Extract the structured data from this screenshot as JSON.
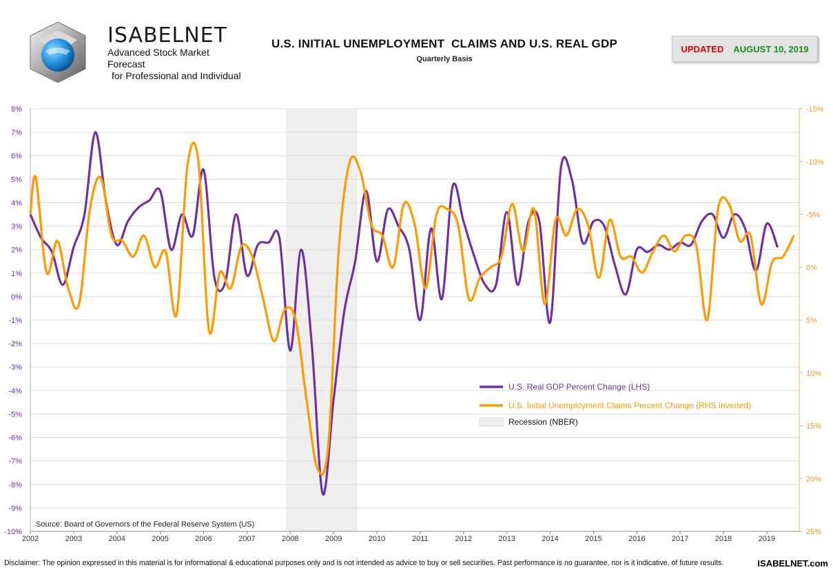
{
  "brand": {
    "name": "ISABELNET",
    "line1": "Advanced Stock Market Forecast",
    "line2": "for Professional and Individual"
  },
  "header": {
    "title": "U.S. INITIAL UNEMPLOYMENT  CLAIMS AND U.S. REAL GDP",
    "subtitle": "Quarterly Basis",
    "updated_label": "UPDATED",
    "updated_date": "AUGUST 10, 2019"
  },
  "colors": {
    "gdp": "#7030a0",
    "claims": "#ff9900",
    "recession": "#efefef",
    "left_axis_text": "#7030a0",
    "right_axis_text": "#e09a2a"
  },
  "footer": {
    "source": "Source: Board of Governors of the Federal Reserve System (US)",
    "disclaimer": "Disclaimer: The opinion expressed in this material is for informational & educational purposes only and is not intended as advice to buy or sell securities. Past performance is no guarantee, nor is it indicative, of future results.",
    "site": "ISABELNET.com"
  },
  "chart_data": {
    "type": "line",
    "title": "U.S. INITIAL UNEMPLOYMENT  CLAIMS AND U.S. REAL GDP",
    "subtitle": "Quarterly Basis",
    "x_tick_labels": [
      "2002",
      "2003",
      "2004",
      "2005",
      "2006",
      "2007",
      "2008",
      "2009",
      "2010",
      "2011",
      "2012",
      "2013",
      "2014",
      "2015",
      "2016",
      "2017",
      "2018",
      "2019"
    ],
    "x_range": [
      2002.0,
      2019.75
    ],
    "y_left": {
      "range": [
        -10,
        8
      ],
      "tick_labels": [
        "8%",
        "7%",
        "6%",
        "5%",
        "4%",
        "3%",
        "2%",
        "1%",
        "0%",
        "-1%",
        "-2%",
        "-3%",
        "-4%",
        "-5%",
        "-6%",
        "-7%",
        "-8%",
        "-9%",
        "-10%"
      ]
    },
    "y_right": {
      "inverted": true,
      "range": [
        -15,
        25
      ],
      "tick_labels": [
        "-15%",
        "-10%",
        "-5%",
        "0%",
        "5%",
        "10%",
        "15%",
        "20%",
        "25%"
      ]
    },
    "grid": "horizontal",
    "legend": "center-right",
    "recession": {
      "start": 2007.9,
      "end": 2009.55,
      "label": "Recession (NBER)"
    },
    "series": [
      {
        "name": "U.S. Real GDP Percent Change (LHS)",
        "axis": "left",
        "x": [
          2002.0,
          2002.25,
          2002.5,
          2002.75,
          2003.0,
          2003.25,
          2003.5,
          2003.75,
          2004.0,
          2004.25,
          2004.5,
          2004.75,
          2005.0,
          2005.25,
          2005.5,
          2005.75,
          2006.0,
          2006.25,
          2006.5,
          2006.75,
          2007.0,
          2007.25,
          2007.5,
          2007.75,
          2008.0,
          2008.25,
          2008.5,
          2008.75,
          2009.0,
          2009.25,
          2009.5,
          2009.75,
          2010.0,
          2010.25,
          2010.5,
          2010.75,
          2011.0,
          2011.25,
          2011.5,
          2011.75,
          2012.0,
          2012.25,
          2012.5,
          2012.75,
          2013.0,
          2013.25,
          2013.5,
          2013.75,
          2014.0,
          2014.25,
          2014.5,
          2014.75,
          2015.0,
          2015.25,
          2015.5,
          2015.75,
          2016.0,
          2016.25,
          2016.5,
          2016.75,
          2017.0,
          2017.25,
          2017.5,
          2017.75,
          2018.0,
          2018.25,
          2018.5,
          2018.75,
          2019.0,
          2019.25
        ],
        "values": [
          3.5,
          2.5,
          1.9,
          0.5,
          2.1,
          3.5,
          7.0,
          4.0,
          2.2,
          3.2,
          3.8,
          4.1,
          4.5,
          2.0,
          3.5,
          2.6,
          5.4,
          0.8,
          0.6,
          3.5,
          0.9,
          2.2,
          2.3,
          2.5,
          -2.3,
          2.0,
          -2.1,
          -8.4,
          -4.4,
          -0.6,
          1.5,
          4.5,
          1.5,
          3.7,
          3.0,
          2.0,
          -1.0,
          2.9,
          -0.1,
          4.7,
          3.2,
          1.7,
          0.5,
          0.5,
          3.6,
          0.5,
          3.2,
          3.2,
          -1.1,
          5.5,
          5.0,
          2.3,
          3.2,
          3.0,
          1.3,
          0.1,
          2.0,
          1.9,
          2.2,
          2.0,
          2.3,
          2.2,
          3.2,
          3.5,
          2.5,
          3.5,
          2.9,
          1.1,
          3.1,
          2.1
        ]
      },
      {
        "name": "U.S. Initial Unemployment Claims Percent Change (RHS Inverted)",
        "axis": "right",
        "x": [
          2002.0,
          2002.125,
          2002.375,
          2002.625,
          2002.875,
          2003.125,
          2003.375,
          2003.625,
          2003.875,
          2004.125,
          2004.375,
          2004.625,
          2004.875,
          2005.125,
          2005.375,
          2005.625,
          2005.875,
          2006.125,
          2006.375,
          2006.625,
          2006.875,
          2007.125,
          2007.375,
          2007.625,
          2007.875,
          2008.125,
          2008.375,
          2008.625,
          2008.875,
          2009.125,
          2009.375,
          2009.625,
          2009.875,
          2010.125,
          2010.375,
          2010.625,
          2010.875,
          2011.125,
          2011.375,
          2011.625,
          2011.875,
          2012.125,
          2012.375,
          2012.625,
          2012.875,
          2013.125,
          2013.375,
          2013.625,
          2013.875,
          2014.125,
          2014.375,
          2014.625,
          2014.875,
          2015.125,
          2015.375,
          2015.625,
          2015.875,
          2016.125,
          2016.375,
          2016.625,
          2016.875,
          2017.125,
          2017.375,
          2017.625,
          2017.875,
          2018.125,
          2018.375,
          2018.625,
          2018.875,
          2019.125,
          2019.375,
          2019.625
        ],
        "values": [
          -5.0,
          -8.5,
          0.5,
          -2.5,
          2.0,
          3.5,
          -5.5,
          -8.5,
          -3.0,
          -2.5,
          -1.0,
          -3.0,
          0.0,
          -1.5,
          4.5,
          -9.5,
          -10.2,
          6.0,
          0.5,
          2.0,
          -2.0,
          -1.0,
          3.0,
          7.0,
          4.0,
          5.0,
          12.5,
          19.0,
          17.0,
          -2.0,
          -10.0,
          -9.0,
          -4.0,
          -3.0,
          0.0,
          -6.0,
          -4.0,
          2.0,
          -5.0,
          -5.5,
          -4.0,
          3.0,
          1.0,
          0.0,
          -1.0,
          -6.0,
          -1.5,
          -5.5,
          3.5,
          -4.5,
          -3.0,
          -5.5,
          -4.0,
          1.0,
          -4.5,
          -1.0,
          -1.0,
          0.5,
          -1.5,
          -3.0,
          -1.5,
          -3.0,
          -2.0,
          5.0,
          -5.5,
          -6.0,
          -2.5,
          -3.0,
          3.5,
          -0.5,
          -1.0,
          -3.0
        ]
      }
    ]
  }
}
